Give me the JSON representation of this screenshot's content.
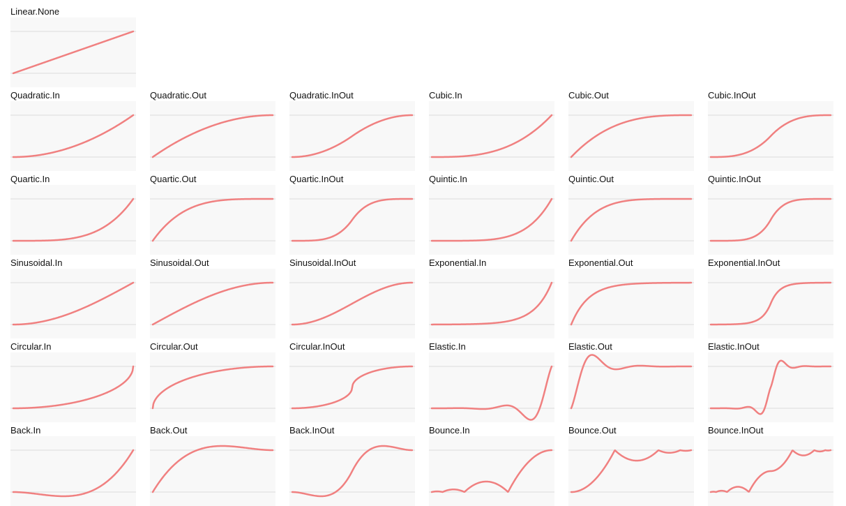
{
  "chart_data": [
    {
      "type": "line",
      "title": "Linear.None",
      "easing": "linear",
      "ylim": [
        -0.2,
        1.2
      ],
      "grid": true
    },
    {
      "type": "line",
      "title": "Quadratic.In",
      "easing": "quadIn",
      "ylim": [
        -0.2,
        1.2
      ],
      "grid": true
    },
    {
      "type": "line",
      "title": "Quadratic.Out",
      "easing": "quadOut",
      "ylim": [
        -0.2,
        1.2
      ],
      "grid": true
    },
    {
      "type": "line",
      "title": "Quadratic.InOut",
      "easing": "quadInOut",
      "ylim": [
        -0.2,
        1.2
      ],
      "grid": true
    },
    {
      "type": "line",
      "title": "Cubic.In",
      "easing": "cubicIn",
      "ylim": [
        -0.2,
        1.2
      ],
      "grid": true
    },
    {
      "type": "line",
      "title": "Cubic.Out",
      "easing": "cubicOut",
      "ylim": [
        -0.2,
        1.2
      ],
      "grid": true
    },
    {
      "type": "line",
      "title": "Cubic.InOut",
      "easing": "cubicInOut",
      "ylim": [
        -0.2,
        1.2
      ],
      "grid": true
    },
    {
      "type": "line",
      "title": "Quartic.In",
      "easing": "quartIn",
      "ylim": [
        -0.2,
        1.2
      ],
      "grid": true
    },
    {
      "type": "line",
      "title": "Quartic.Out",
      "easing": "quartOut",
      "ylim": [
        -0.2,
        1.2
      ],
      "grid": true
    },
    {
      "type": "line",
      "title": "Quartic.InOut",
      "easing": "quartInOut",
      "ylim": [
        -0.2,
        1.2
      ],
      "grid": true
    },
    {
      "type": "line",
      "title": "Quintic.In",
      "easing": "quintIn",
      "ylim": [
        -0.2,
        1.2
      ],
      "grid": true
    },
    {
      "type": "line",
      "title": "Quintic.Out",
      "easing": "quintOut",
      "ylim": [
        -0.2,
        1.2
      ],
      "grid": true
    },
    {
      "type": "line",
      "title": "Quintic.InOut",
      "easing": "quintInOut",
      "ylim": [
        -0.2,
        1.2
      ],
      "grid": true
    },
    {
      "type": "line",
      "title": "Sinusoidal.In",
      "easing": "sineIn",
      "ylim": [
        -0.2,
        1.2
      ],
      "grid": true
    },
    {
      "type": "line",
      "title": "Sinusoidal.Out",
      "easing": "sineOut",
      "ylim": [
        -0.2,
        1.2
      ],
      "grid": true
    },
    {
      "type": "line",
      "title": "Sinusoidal.InOut",
      "easing": "sineInOut",
      "ylim": [
        -0.2,
        1.2
      ],
      "grid": true
    },
    {
      "type": "line",
      "title": "Exponential.In",
      "easing": "expoIn",
      "ylim": [
        -0.2,
        1.2
      ],
      "grid": true
    },
    {
      "type": "line",
      "title": "Exponential.Out",
      "easing": "expoOut",
      "ylim": [
        -0.2,
        1.2
      ],
      "grid": true
    },
    {
      "type": "line",
      "title": "Exponential.InOut",
      "easing": "expoInOut",
      "ylim": [
        -0.2,
        1.2
      ],
      "grid": true
    },
    {
      "type": "line",
      "title": "Circular.In",
      "easing": "circIn",
      "ylim": [
        -0.2,
        1.2
      ],
      "grid": true
    },
    {
      "type": "line",
      "title": "Circular.Out",
      "easing": "circOut",
      "ylim": [
        -0.2,
        1.2
      ],
      "grid": true
    },
    {
      "type": "line",
      "title": "Circular.InOut",
      "easing": "circInOut",
      "ylim": [
        -0.2,
        1.2
      ],
      "grid": true
    },
    {
      "type": "line",
      "title": "Elastic.In",
      "easing": "elasticIn",
      "ylim": [
        -0.2,
        1.2
      ],
      "grid": true
    },
    {
      "type": "line",
      "title": "Elastic.Out",
      "easing": "elasticOut",
      "ylim": [
        -0.2,
        1.2
      ],
      "grid": true
    },
    {
      "type": "line",
      "title": "Elastic.InOut",
      "easing": "elasticInOut",
      "ylim": [
        -0.2,
        1.2
      ],
      "grid": true
    },
    {
      "type": "line",
      "title": "Back.In",
      "easing": "backIn",
      "ylim": [
        -0.2,
        1.2
      ],
      "grid": true
    },
    {
      "type": "line",
      "title": "Back.Out",
      "easing": "backOut",
      "ylim": [
        -0.2,
        1.2
      ],
      "grid": true
    },
    {
      "type": "line",
      "title": "Back.InOut",
      "easing": "backInOut",
      "ylim": [
        -0.2,
        1.2
      ],
      "grid": true
    },
    {
      "type": "line",
      "title": "Bounce.In",
      "easing": "bounceIn",
      "ylim": [
        -0.2,
        1.2
      ],
      "grid": true
    },
    {
      "type": "line",
      "title": "Bounce.Out",
      "easing": "bounceOut",
      "ylim": [
        -0.2,
        1.2
      ],
      "grid": true
    },
    {
      "type": "line",
      "title": "Bounce.InOut",
      "easing": "bounceInOut",
      "ylim": [
        -0.2,
        1.2
      ],
      "grid": true
    }
  ],
  "colors": {
    "curve": "#f08080",
    "grid": "#e6e6e6",
    "plot_bg": "#f8f8f8",
    "label": "#111111"
  }
}
